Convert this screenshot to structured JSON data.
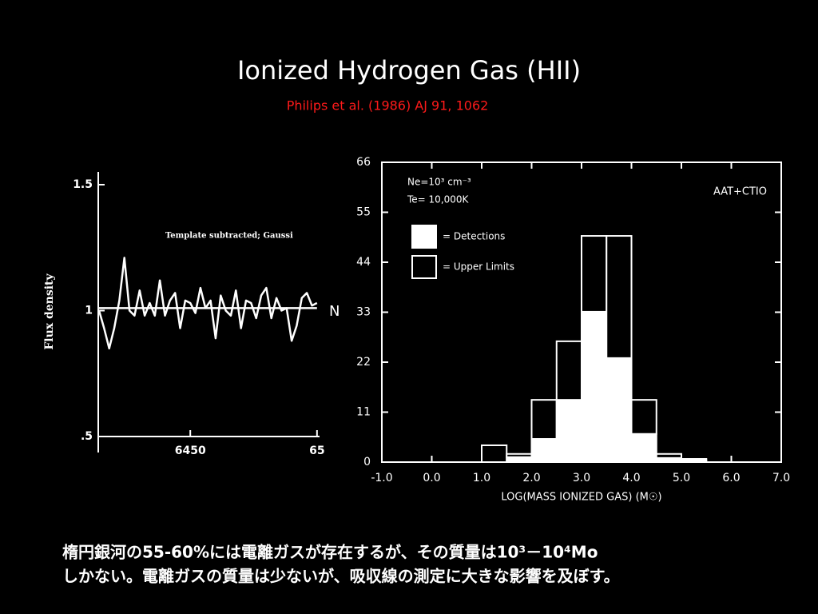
{
  "title": "Ionized Hydrogen Gas (HII)",
  "subtitle": "Philips et al. (1986) AJ 91, 1062",
  "caption": [
    "楕円銀河の55-60%には電離ガスが存在するが、その質量は10³－10⁴Mo",
    "しかない。電離ガスの質量は少ないが、吸収線の測定に大きな影響を及ぼす。"
  ],
  "chart_data": [
    {
      "type": "line",
      "ylabel": "Flux density",
      "annotations": [
        "Template subtracted; Gaussi",
        "N"
      ],
      "x": [
        6414,
        6416,
        6418,
        6420,
        6422,
        6424,
        6426,
        6428,
        6430,
        6432,
        6434,
        6436,
        6438,
        6440,
        6442,
        6444,
        6446,
        6448,
        6450,
        6452,
        6454,
        6456,
        6458,
        6460,
        6462,
        6464,
        6466,
        6468,
        6470,
        6472,
        6474,
        6476,
        6478,
        6480,
        6482,
        6484,
        6486,
        6488,
        6490,
        6492,
        6494,
        6496,
        6498,
        6500
      ],
      "series": [
        {
          "color": "#ffffff",
          "values": [
            1.0,
            0.93,
            0.85,
            0.93,
            1.04,
            1.21,
            1.0,
            0.98,
            1.08,
            0.98,
            1.03,
            0.98,
            1.12,
            0.98,
            1.04,
            1.07,
            0.93,
            1.04,
            1.03,
            0.99,
            1.09,
            1.01,
            1.04,
            0.89,
            1.06,
            1.0,
            0.98,
            1.08,
            0.93,
            1.04,
            1.03,
            0.97,
            1.06,
            1.09,
            0.97,
            1.05,
            1.0,
            1.01,
            0.88,
            0.94,
            1.05,
            1.07,
            1.02,
            1.03
          ]
        },
        {
          "color": "#ffffff",
          "values": [
            1.01,
            1.01,
            1.01,
            1.01,
            1.01,
            1.01,
            1.01,
            1.01,
            1.01,
            1.01,
            1.01,
            1.01,
            1.01,
            1.01,
            1.01,
            1.01,
            1.01,
            1.01,
            1.01,
            1.01,
            1.01,
            1.01,
            1.01,
            1.01,
            1.01,
            1.01,
            1.01,
            1.01,
            1.01,
            1.01,
            1.01,
            1.01,
            1.01,
            1.01,
            1.01,
            1.01,
            1.01,
            1.01,
            1.01,
            1.01,
            1.01,
            1.01,
            1.01,
            1.01
          ]
        }
      ],
      "xlim": [
        6414,
        6501
      ],
      "xticks": [
        6450,
        {
          "value": 6500,
          "label": "65"
        }
      ],
      "ylim": [
        0.5,
        1.5
      ],
      "yticks": [
        {
          "value": 0.5,
          "label": ".5"
        },
        1,
        1.5
      ]
    },
    {
      "type": "histogram",
      "xlabel": "LOG(MASS IONIZED GAS) (M☉)",
      "annotations": [
        "Ne=10³ cm⁻³",
        "Te= 10,000K",
        "AAT+CTIO"
      ],
      "bins": [
        1.0,
        1.5,
        2.0,
        2.5,
        3.0,
        3.5,
        4.0,
        4.5,
        5.0,
        5.5
      ],
      "series": [
        {
          "name": "= Detections",
          "color": "#ffffff",
          "values": [
            0,
            1.1,
            5.1,
            13.7,
            33.1,
            22.9,
            6.2,
            0.9,
            0.4
          ]
        },
        {
          "name": "= Upper Limits",
          "color": "#000000",
          "values": [
            3.7,
            0.7,
            8.6,
            12.9,
            16.7,
            26.9,
            7.5,
            0.9,
            0.3
          ]
        }
      ],
      "stacked": true,
      "xlim": [
        -1.0,
        7.0
      ],
      "xticks": [
        {
          "value": -1.0,
          "label": "-1.0"
        },
        {
          "value": 0.0,
          "label": "0.0"
        },
        {
          "value": 1.0,
          "label": "1.0"
        },
        {
          "value": 2.0,
          "label": "2.0"
        },
        {
          "value": 3.0,
          "label": "3.0"
        },
        {
          "value": 4.0,
          "label": "4.0"
        },
        {
          "value": 5.0,
          "label": "5.0"
        },
        {
          "value": 6.0,
          "label": "6.0"
        },
        {
          "value": 7.0,
          "label": "7.0"
        }
      ],
      "ylim": [
        0,
        66
      ],
      "yticks": [
        0,
        11,
        22,
        33,
        44,
        55,
        66
      ]
    }
  ]
}
